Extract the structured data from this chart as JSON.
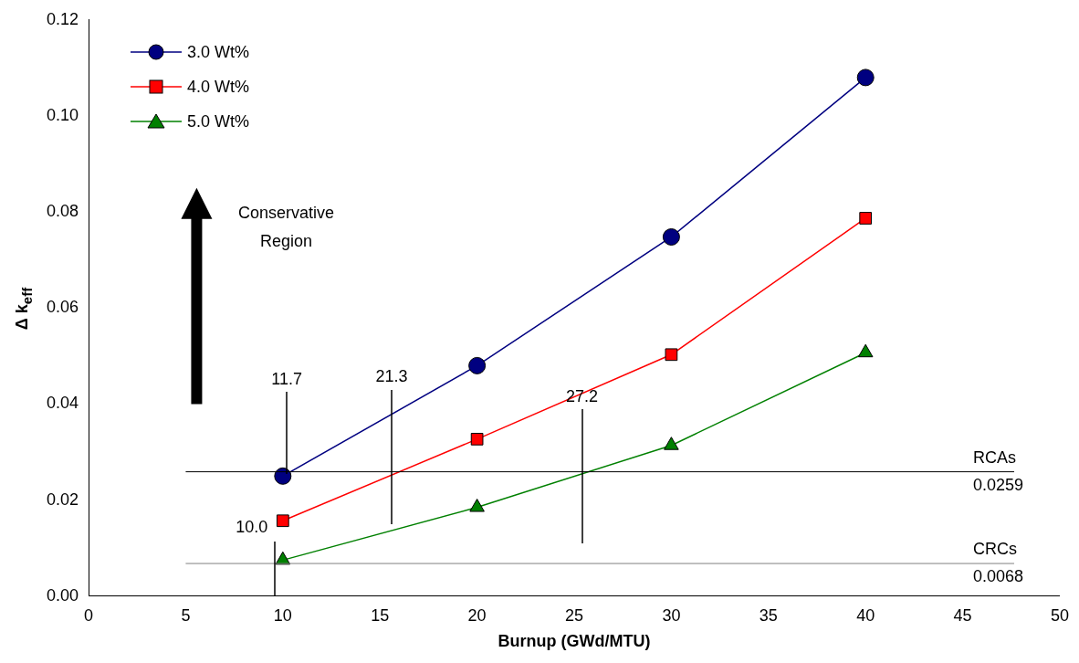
{
  "chart_data": {
    "type": "line",
    "xlabel": "Burnup (GWd/MTU)",
    "ylabel": "Δ k$_{eff}$",
    "xlim": [
      0,
      50
    ],
    "xticks": [
      0,
      5,
      10,
      15,
      20,
      25,
      30,
      35,
      40,
      45,
      50
    ],
    "ylim": [
      0,
      0.12
    ],
    "yticks": [
      {
        "value": 0,
        "label": "0.00"
      },
      {
        "value": 0.02,
        "label": "0.02"
      },
      {
        "value": 0.04,
        "label": "0.04"
      },
      {
        "value": 0.06,
        "label": "0.06"
      },
      {
        "value": 0.08,
        "label": "0.08"
      },
      {
        "value": 0.1,
        "label": "0.10"
      },
      {
        "value": 0.12,
        "label": "0.12"
      }
    ],
    "x": [
      10,
      20,
      30,
      40
    ],
    "series": [
      {
        "name": "3.0 Wt%",
        "color": "#000080",
        "marker": "circle",
        "values": [
          0.025,
          0.048,
          0.0748,
          0.108
        ]
      },
      {
        "name": "4.0 Wt%",
        "color": "#ff0000",
        "marker": "square",
        "values": [
          0.0157,
          0.0327,
          0.0503,
          0.0787
        ]
      },
      {
        "name": "5.0 Wt%",
        "color": "#008000",
        "marker": "triangle",
        "values": [
          0.0075,
          0.0185,
          0.0314,
          0.0507
        ]
      }
    ],
    "ref_lines": [
      {
        "axis": "y",
        "value": 0.0259,
        "label": "RCAs 0.0259",
        "color": "#000000"
      },
      {
        "axis": "y",
        "value": 0.0068,
        "label": "CRCs 0.0068",
        "color": "#808080"
      }
    ],
    "annotations": [
      "Conservative Region",
      {
        "text": "11.7",
        "x": 10.2,
        "y": 0.0259
      },
      {
        "text": "21.3",
        "x": 15.6,
        "y": 0.0379
      },
      {
        "text": "27.2",
        "x": 25.4,
        "y": 0.0422
      },
      {
        "text": "10.0",
        "x": 9.6,
        "y": 0.0068
      }
    ],
    "legend": "top left",
    "grid": false
  }
}
